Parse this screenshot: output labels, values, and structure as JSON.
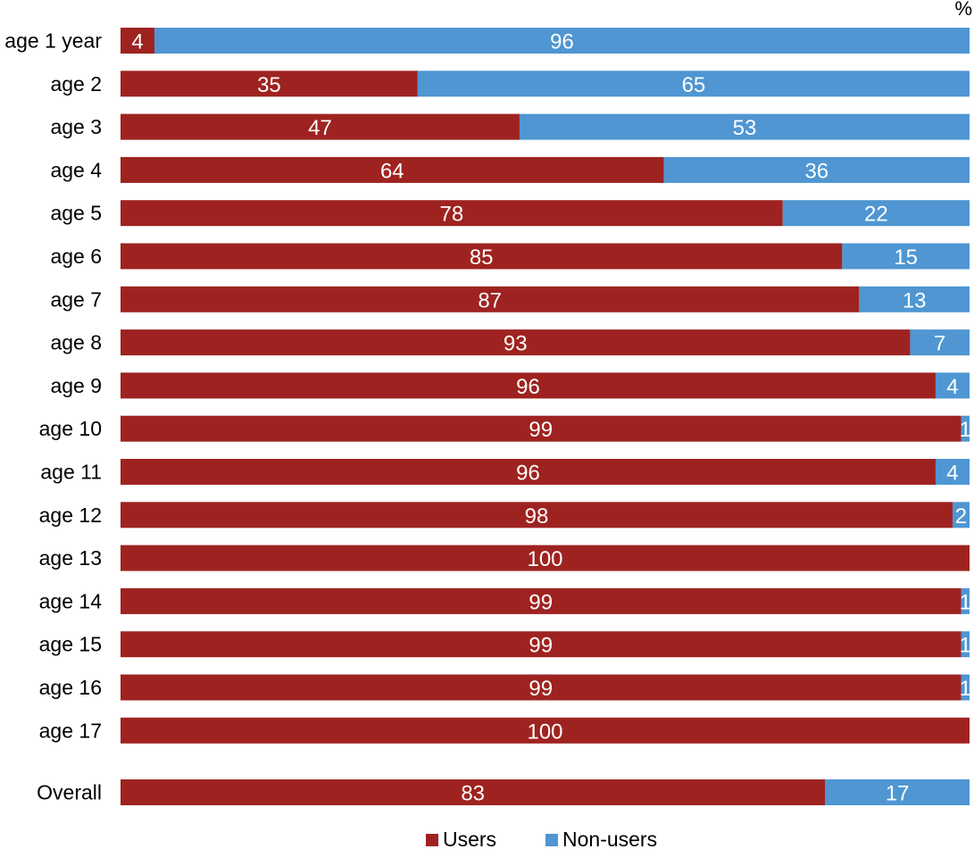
{
  "chart_data": {
    "type": "bar",
    "orientation": "horizontal",
    "stacked": true,
    "unit": "%",
    "categories": [
      "age 1 year",
      "age 2",
      "age 3",
      "age 4",
      "age 5",
      "age 6",
      "age 7",
      "age 8",
      "age 9",
      "age 10",
      "age 11",
      "age 12",
      "age 13",
      "age 14",
      "age 15",
      "age 16",
      "age 17",
      "Overall"
    ],
    "series": [
      {
        "name": "Users",
        "color": "#9e2320",
        "values": [
          4,
          35,
          47,
          64,
          78,
          85,
          87,
          93,
          96,
          99,
          96,
          98,
          100,
          99,
          99,
          99,
          100,
          83
        ]
      },
      {
        "name": "Non-users",
        "color": "#4f96d2",
        "values": [
          96,
          65,
          53,
          36,
          22,
          15,
          13,
          7,
          4,
          1,
          4,
          2,
          0,
          1,
          1,
          1,
          0,
          17
        ]
      }
    ],
    "xlim": [
      0,
      100
    ],
    "grid": false,
    "legend": "bottom-center"
  }
}
